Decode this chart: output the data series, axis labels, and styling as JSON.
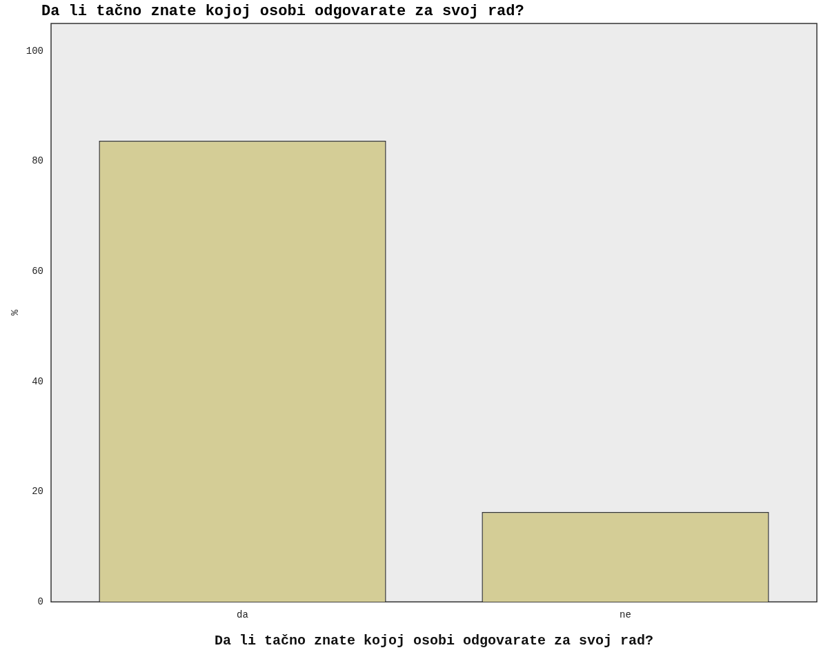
{
  "chart_data": {
    "type": "bar",
    "title": "Da li tačno znate kojoj osobi odgovarate za svoj rad?",
    "xlabel": "Da li tačno znate kojoj osobi odgovarate za svoj rad?",
    "ylabel": "%",
    "categories": [
      "da",
      "ne"
    ],
    "values": [
      83.7,
      16.3
    ],
    "color": "#d4cd96",
    "ylim": [
      0,
      105
    ],
    "yticks": [
      0,
      20,
      40,
      60,
      80,
      100
    ],
    "grid": false,
    "legend": false
  }
}
